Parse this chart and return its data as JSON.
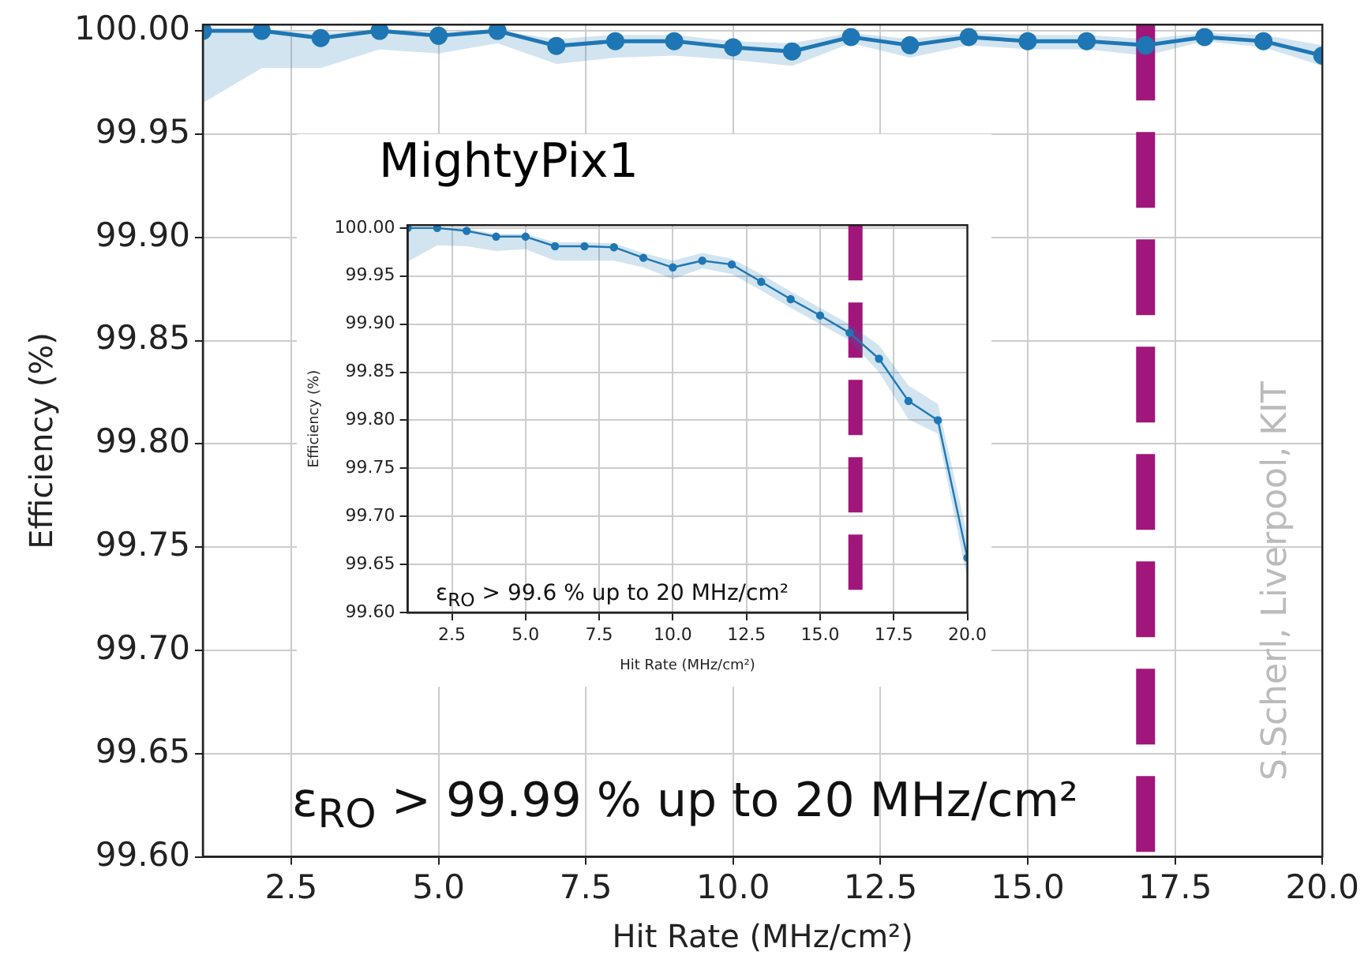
{
  "chart_data": [
    {
      "type": "line",
      "xlabel": "Hit Rate (MHz/cm²)",
      "ylabel": "Efficiency (%)",
      "x": [
        1,
        2,
        3,
        4,
        5,
        6,
        7,
        8,
        9,
        10,
        11,
        12,
        13,
        14,
        15,
        16,
        17,
        18,
        19,
        20
      ],
      "series": [
        {
          "color": "#1f77b4",
          "values": [
            100.0,
            100.0,
            99.9965,
            100.0,
            99.9976,
            100.0,
            99.9927,
            99.995,
            99.995,
            99.992,
            99.99,
            99.997,
            99.993,
            99.997,
            99.995,
            99.995,
            99.993,
            99.997,
            99.995,
            99.988
          ],
          "lower": [
            99.965,
            99.982,
            99.982,
            99.991,
            99.989,
            99.994,
            99.984,
            99.987,
            99.988,
            99.986,
            99.983,
            99.994,
            99.987,
            99.993,
            99.991,
            99.991,
            99.988,
            99.995,
            99.992,
            99.983
          ],
          "upper": [
            100.0,
            100.0,
            99.999,
            100.0,
            99.999,
            100.0,
            99.996,
            99.998,
            99.998,
            99.995,
            99.994,
            99.999,
            99.996,
            99.999,
            99.998,
            99.998,
            99.996,
            99.999,
            99.998,
            99.993
          ]
        }
      ],
      "xlim": [
        1,
        20
      ],
      "ylim": [
        99.6,
        100.003
      ],
      "xticks": [
        {
          "value": 2.5,
          "label": "2.5"
        },
        {
          "value": 5,
          "label": "5.0"
        },
        {
          "value": 7.5,
          "label": "7.5"
        },
        {
          "value": 10,
          "label": "10.0"
        },
        {
          "value": 12.5,
          "label": "12.5"
        },
        {
          "value": 15,
          "label": "15.0"
        },
        {
          "value": 17.5,
          "label": "17.5"
        },
        {
          "value": 20,
          "label": "20.0"
        }
      ],
      "yticks": [
        {
          "value": 99.6,
          "label": "99.60"
        },
        {
          "value": 99.65,
          "label": "99.65"
        },
        {
          "value": 99.7,
          "label": "99.70"
        },
        {
          "value": 99.75,
          "label": "99.75"
        },
        {
          "value": 99.8,
          "label": "99.80"
        },
        {
          "value": 99.85,
          "label": "99.85"
        },
        {
          "value": 99.9,
          "label": "99.90"
        },
        {
          "value": 99.95,
          "label": "99.95"
        },
        {
          "value": 100,
          "label": "100.00"
        }
      ],
      "grid": true,
      "marker": "circle",
      "line_style": "solid",
      "ref_lines": [
        {
          "axis": "x",
          "value": 17,
          "color": "#a0167a",
          "line_style": "dashed"
        }
      ],
      "annotations": [
        "ε$_{RO}$ > 99.99 % up to 20 MHz/cm²",
        "S.Scherl, Liverpool, KIT"
      ]
    },
    {
      "type": "line",
      "title": "MightyPix1",
      "xlabel": "Hit Rate (MHz/cm²)",
      "ylabel": "Efficiency (%)",
      "x": [
        1,
        2,
        3,
        4,
        5,
        6,
        7,
        8,
        9,
        10,
        11,
        12,
        13,
        14,
        15,
        16,
        17,
        18,
        19,
        20
      ],
      "series": [
        {
          "color": "#1f77b4",
          "values": [
            100.0,
            100.0,
            99.997,
            99.991,
            99.991,
            99.981,
            99.981,
            99.98,
            99.969,
            99.959,
            99.966,
            99.962,
            99.944,
            99.926,
            99.909,
            99.891,
            99.864,
            99.82,
            99.8,
            99.657
          ],
          "lower": [
            99.965,
            99.982,
            99.981,
            99.976,
            99.978,
            99.966,
            99.966,
            99.966,
            99.959,
            99.947,
            99.958,
            99.952,
            99.935,
            99.917,
            99.9,
            99.883,
            99.85,
            99.801,
            99.786,
            99.634
          ],
          "upper": [
            100.0,
            100.0,
            99.999,
            99.994,
            99.994,
            99.985,
            99.985,
            99.984,
            99.974,
            99.966,
            99.974,
            99.968,
            99.952,
            99.934,
            99.917,
            99.9,
            99.878,
            99.836,
            99.817,
            99.68
          ]
        }
      ],
      "xlim": [
        1,
        20
      ],
      "ylim": [
        99.6,
        100.003
      ],
      "xticks": [
        {
          "value": 2.5,
          "label": "2.5"
        },
        {
          "value": 5,
          "label": "5.0"
        },
        {
          "value": 7.5,
          "label": "7.5"
        },
        {
          "value": 10,
          "label": "10.0"
        },
        {
          "value": 12.5,
          "label": "12.5"
        },
        {
          "value": 15,
          "label": "15.0"
        },
        {
          "value": 17.5,
          "label": "17.5"
        },
        {
          "value": 20,
          "label": "20.0"
        }
      ],
      "yticks": [
        {
          "value": 99.6,
          "label": "99.60"
        },
        {
          "value": 99.65,
          "label": "99.65"
        },
        {
          "value": 99.7,
          "label": "99.70"
        },
        {
          "value": 99.75,
          "label": "99.75"
        },
        {
          "value": 99.8,
          "label": "99.80"
        },
        {
          "value": 99.85,
          "label": "99.85"
        },
        {
          "value": 99.9,
          "label": "99.90"
        },
        {
          "value": 99.95,
          "label": "99.95"
        },
        {
          "value": 100,
          "label": "100.00"
        }
      ],
      "grid": true,
      "marker": "circle",
      "line_style": "solid",
      "ref_lines": [
        {
          "axis": "x",
          "value": 16.2,
          "color": "#a0167a",
          "line_style": "dashed"
        }
      ],
      "annotations": [
        "ε$_{RO}$ > 99.6 % up to 20 MHz/cm²"
      ]
    }
  ]
}
